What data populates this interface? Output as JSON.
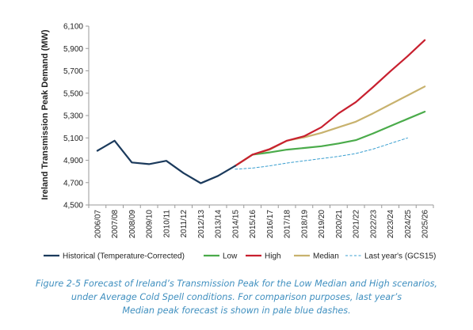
{
  "chart_data": {
    "type": "line",
    "ylabel": "Ireland Transmission Peak Demand (MW)",
    "xlabel": "",
    "ylim": [
      4500,
      6100
    ],
    "yticks": [
      "4,500",
      "4,700",
      "4,900",
      "5,100",
      "5,300",
      "5,500",
      "5,700",
      "5,900",
      "6,100"
    ],
    "ytick_values": [
      4500,
      4700,
      4900,
      5100,
      5300,
      5500,
      5700,
      5900,
      6100
    ],
    "categories": [
      "2006/07",
      "2007/08",
      "2008/09",
      "2009/10",
      "2010/11",
      "2011/12",
      "2012/13",
      "2013/14",
      "2014/15",
      "2015/16",
      "2016/17",
      "2017/18",
      "2018/19",
      "2019/20",
      "2020/21",
      "2021/22",
      "2022/23",
      "2023/24",
      "2024/25",
      "2025/26"
    ],
    "grid": false,
    "legend_position": "bottom",
    "series": [
      {
        "name": "Historical (Temperature-Corrected)",
        "color": "#1b3a5c",
        "dash": "solid",
        "values": [
          4985,
          5075,
          4880,
          4865,
          4895,
          4785,
          4695,
          4760,
          4850,
          null,
          null,
          null,
          null,
          null,
          null,
          null,
          null,
          null,
          null,
          null
        ]
      },
      {
        "name": "Low",
        "color": "#4aab4a",
        "dash": "solid",
        "values": [
          null,
          null,
          null,
          null,
          null,
          null,
          null,
          null,
          4850,
          4950,
          4970,
          4995,
          5010,
          5025,
          5050,
          5080,
          5140,
          5205,
          5270,
          5335
        ]
      },
      {
        "name": "High",
        "color": "#c8202f",
        "dash": "solid",
        "values": [
          null,
          null,
          null,
          null,
          null,
          null,
          null,
          null,
          4850,
          4950,
          5000,
          5075,
          5115,
          5195,
          5320,
          5420,
          5555,
          5695,
          5830,
          5975
        ]
      },
      {
        "name": "Median",
        "color": "#c8b26e",
        "dash": "solid",
        "values": [
          null,
          null,
          null,
          null,
          null,
          null,
          null,
          null,
          4850,
          4950,
          4995,
          5075,
          5105,
          5145,
          5195,
          5245,
          5320,
          5400,
          5480,
          5560
        ]
      },
      {
        "name": "Last year's (GCS15)",
        "color": "#3a9fd0",
        "dash": "dashed",
        "values": [
          null,
          null,
          null,
          null,
          null,
          null,
          null,
          null,
          4820,
          4830,
          4850,
          4875,
          4895,
          4915,
          4935,
          4960,
          5000,
          5050,
          5100,
          null
        ]
      }
    ]
  },
  "caption": {
    "line1": "Figure 2-5 Forecast of Ireland’s Transmission Peak for the Low Median and High scenarios,",
    "line2": "under Average Cold Spell conditions. For comparison purposes, last year’s",
    "line3": "Median peak forecast is shown in pale blue dashes."
  }
}
